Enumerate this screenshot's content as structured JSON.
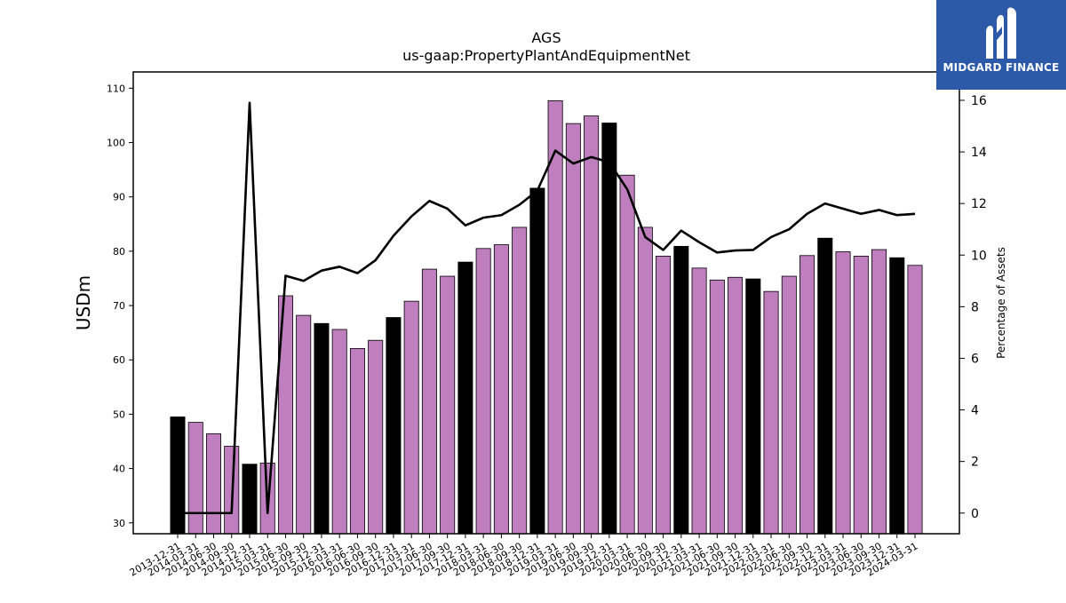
{
  "brand": {
    "name": "MIDGARD FINANCE",
    "color": "#2c5aa8"
  },
  "chart_data": {
    "type": "bar",
    "title": "AGS",
    "subtitle": "us-gaap:PropertyPlantAndEquipmentNet",
    "ylabel": "USDm",
    "y2label": "Percentage of Assets",
    "ylim": [
      28,
      113
    ],
    "y2lim": [
      -0.8,
      17.1
    ],
    "yticks": [
      30,
      40,
      50,
      60,
      70,
      80,
      90,
      100,
      110
    ],
    "y2ticks": [
      0,
      2,
      4,
      6,
      8,
      10,
      12,
      14,
      16
    ],
    "categories": [
      "2013-12-31",
      "2014-03-31",
      "2014-06-30",
      "2014-09-30",
      "2014-12-31",
      "2015-03-31",
      "2015-06-30",
      "2015-09-30",
      "2015-12-31",
      "2016-03-31",
      "2016-06-30",
      "2016-09-30",
      "2016-12-31",
      "2017-03-31",
      "2017-06-30",
      "2017-09-30",
      "2017-12-31",
      "2018-03-31",
      "2018-06-30",
      "2018-09-30",
      "2018-12-31",
      "2019-03-31",
      "2019-06-30",
      "2019-09-30",
      "2019-12-31",
      "2020-03-31",
      "2020-06-30",
      "2020-09-30",
      "2020-12-31",
      "2021-03-31",
      "2021-06-30",
      "2021-09-30",
      "2021-12-31",
      "2022-03-31",
      "2022-06-30",
      "2022-09-30",
      "2022-12-31",
      "2023-03-31",
      "2023-06-30",
      "2023-09-30",
      "2023-12-31",
      "2024-03-31"
    ],
    "series": [
      {
        "name": "",
        "axis": "left",
        "kind": "bar",
        "values": [
          49.5,
          48.5,
          46.4,
          44.1,
          40.8,
          41.0,
          71.8,
          68.2,
          66.7,
          65.6,
          62.1,
          63.6,
          67.8,
          70.8,
          76.7,
          75.4,
          78.0,
          80.5,
          81.2,
          84.4,
          91.6,
          107.7,
          103.5,
          104.9,
          103.6,
          94.0,
          84.4,
          79.1,
          80.9,
          76.9,
          74.7,
          75.2,
          74.9,
          72.6,
          75.4,
          79.2,
          82.4,
          79.9,
          79.1,
          80.3,
          78.8,
          77.4
        ],
        "year_end_color": "#000000",
        "quarter_color": "#bf7fbf"
      },
      {
        "name": "",
        "axis": "right",
        "kind": "line",
        "color": "#000000",
        "values": [
          0.0,
          0.0,
          0.0,
          0.0,
          15.9,
          0.0,
          9.2,
          9.0,
          9.4,
          9.55,
          9.3,
          9.8,
          10.75,
          11.5,
          12.1,
          11.8,
          11.15,
          11.45,
          11.55,
          11.95,
          12.5,
          14.05,
          13.55,
          13.8,
          13.6,
          12.55,
          10.7,
          10.2,
          10.95,
          10.5,
          10.1,
          10.18,
          10.2,
          10.7,
          11.0,
          11.6,
          12.0,
          11.8,
          11.6,
          11.75,
          11.55,
          11.6
        ]
      }
    ],
    "grid": false,
    "legend": "none"
  }
}
